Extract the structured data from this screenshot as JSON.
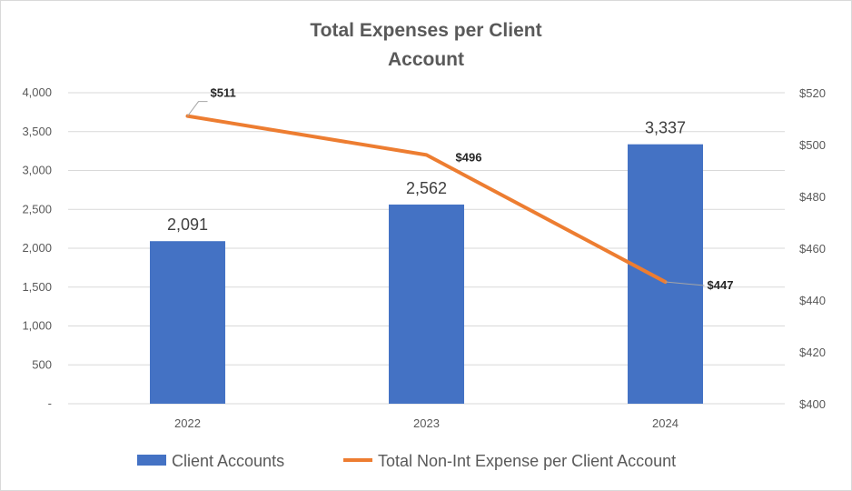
{
  "chart_data": {
    "type": "bar",
    "title_lines": [
      "Total Expenses per Client",
      "Account"
    ],
    "categories": [
      "2022",
      "2023",
      "2024"
    ],
    "series": [
      {
        "name": "Client Accounts",
        "type": "bar",
        "axis": "left",
        "color": "#4472C4",
        "values": [
          2091,
          2562,
          3337
        ],
        "labels": [
          "2,091",
          "2,562",
          "3,337"
        ]
      },
      {
        "name": "Total Non-Int Expense per Client Account",
        "type": "line",
        "axis": "right",
        "color": "#ED7D31",
        "values": [
          511,
          496,
          447
        ],
        "labels": [
          "$511",
          "$496",
          "$447"
        ]
      }
    ],
    "y_left": {
      "min": 0,
      "max": 4000,
      "step": 500,
      "tick_labels": [
        "-",
        "500",
        "1,000",
        "1,500",
        "2,000",
        "2,500",
        "3,000",
        "3,500",
        "4,000"
      ]
    },
    "y_right": {
      "min": 400,
      "max": 520,
      "step": 20,
      "tick_labels": [
        "$400",
        "$420",
        "$440",
        "$460",
        "$480",
        "$500",
        "$520"
      ]
    },
    "grid": true,
    "legend_position": "bottom"
  }
}
